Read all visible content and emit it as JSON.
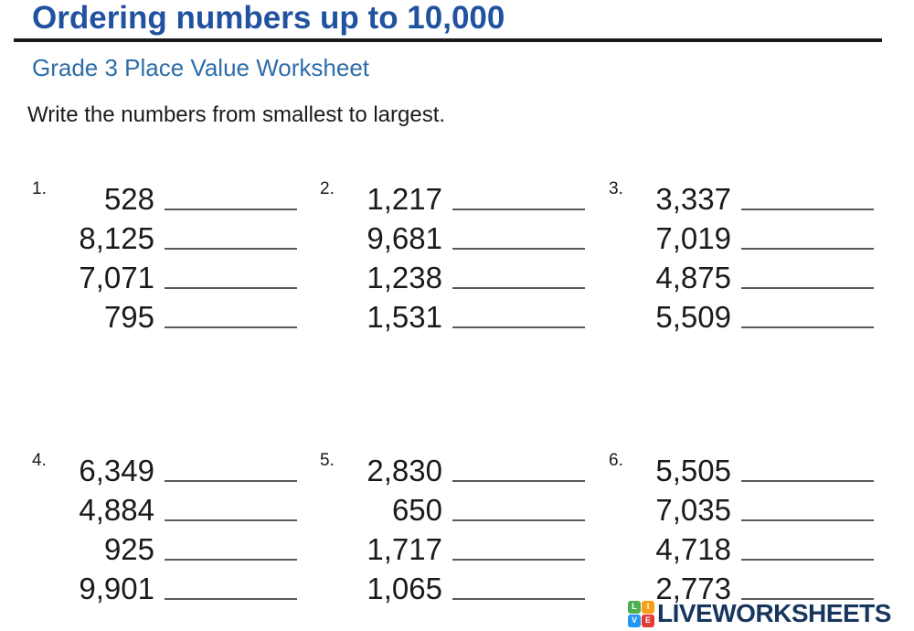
{
  "header": {
    "title": "Ordering numbers up to 10,000",
    "subtitle": "Grade 3 Place Value Worksheet",
    "instruction": "Write the numbers from smallest to largest."
  },
  "problems": [
    {
      "number": "1.",
      "values": [
        "528",
        "8,125",
        "7,071",
        "795"
      ]
    },
    {
      "number": "2.",
      "values": [
        "1,217",
        "9,681",
        "1,238",
        "1,531"
      ]
    },
    {
      "number": "3.",
      "values": [
        "3,337",
        "7,019",
        "4,875",
        "5,509"
      ]
    },
    {
      "number": "4.",
      "values": [
        "6,349",
        "4,884",
        "925",
        "9,901"
      ]
    },
    {
      "number": "5.",
      "values": [
        "2,830",
        "650",
        "1,717",
        "1,065"
      ]
    },
    {
      "number": "6.",
      "values": [
        "5,505",
        "7,035",
        "4,718",
        "2,773"
      ]
    }
  ],
  "footer": {
    "logo_text": "LIVEWORKSHEETS",
    "logo_squares": [
      {
        "letter": "L",
        "color": "#4caf50"
      },
      {
        "letter": "I",
        "color": "#f6a01a"
      },
      {
        "letter": "V",
        "color": "#2196f3"
      },
      {
        "letter": "E",
        "color": "#e53935"
      }
    ]
  },
  "colors": {
    "title_blue": "#2152a0",
    "subtitle_blue": "#2e6da8",
    "text_black": "#1a1a1a",
    "rule_black": "#1a1a1a",
    "blank_line_gray": "#595959",
    "logo_navy": "#17365d"
  }
}
